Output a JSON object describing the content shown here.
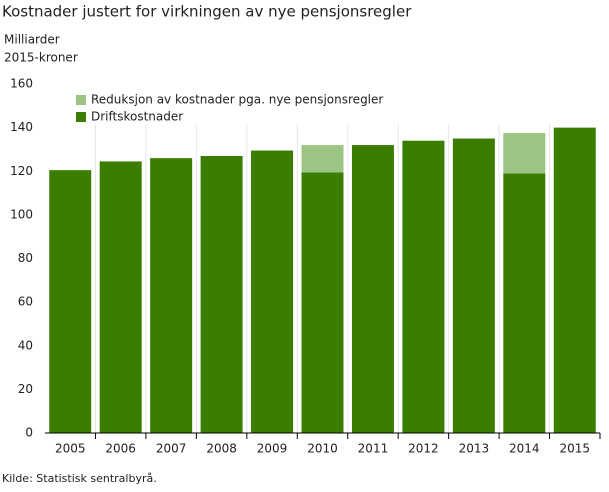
{
  "chart_data": {
    "type": "stacked_bar",
    "title": "Kostnader justert for virkningen av nye pensjonsregler",
    "y_label_lines": [
      "Milliarder",
      "2015-kroner"
    ],
    "source": "Kilde: Statistisk sentralbyrå.",
    "categories": [
      "2005",
      "2006",
      "2007",
      "2008",
      "2009",
      "2010",
      "2011",
      "2012",
      "2013",
      "2014",
      "2015"
    ],
    "series": [
      {
        "name": "Driftskostnader",
        "color": "#3a7d00",
        "values": [
          120.5,
          124.5,
          126,
          127,
          129.5,
          119.5,
          132,
          134,
          135,
          119,
          140
        ]
      },
      {
        "name": "Reduksjon av kostnader pga. nye pensjonsregler",
        "color": "#9cc483",
        "values": [
          null,
          null,
          null,
          null,
          null,
          12.5,
          null,
          null,
          null,
          18.5,
          null
        ]
      }
    ],
    "ylim": [
      0,
      160
    ],
    "yticks": [
      0,
      20,
      40,
      60,
      80,
      100,
      120,
      140,
      160
    ],
    "legend": "top-left"
  }
}
